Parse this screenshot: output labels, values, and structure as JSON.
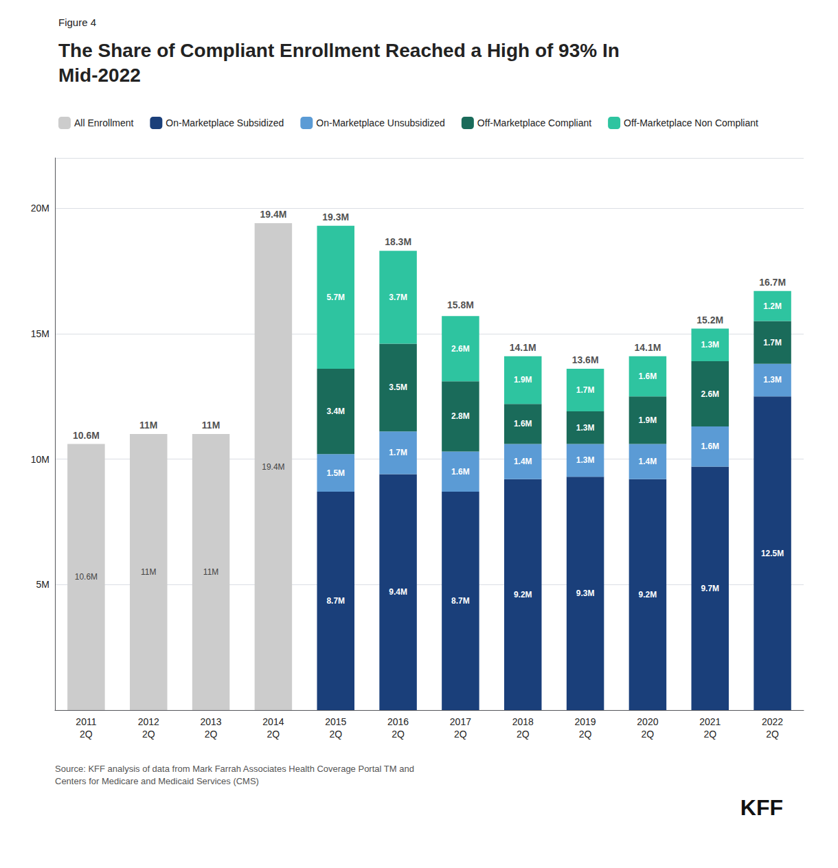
{
  "chart_data": {
    "type": "bar",
    "subtitle": "Figure 4",
    "title": "The Share of Compliant Enrollment Reached a High of 93% In\nMid-2022",
    "categories": [
      "2011\n2Q",
      "2012\n2Q",
      "2013\n2Q",
      "2014\n2Q",
      "2015\n2Q",
      "2016\n2Q",
      "2017\n2Q",
      "2018\n2Q",
      "2019\n2Q",
      "2020\n2Q",
      "2021\n2Q",
      "2022\n2Q"
    ],
    "series": [
      {
        "name": "All Enrollment",
        "color": "#cccccc",
        "values": [
          10.6,
          11.0,
          11.0,
          19.4,
          0,
          0,
          0,
          0,
          0,
          0,
          0,
          0
        ],
        "value_labels": [
          "10.6M",
          "11M",
          "11M",
          "19.4M",
          null,
          null,
          null,
          null,
          null,
          null,
          null,
          null
        ]
      },
      {
        "name": "On-Marketplace Subsidized",
        "color": "#1a3f7a",
        "values": [
          0,
          0,
          0,
          0,
          8.7,
          9.4,
          8.7,
          9.2,
          9.3,
          9.2,
          9.7,
          12.5
        ],
        "value_labels": [
          null,
          null,
          null,
          null,
          "8.7M",
          "9.4M",
          "8.7M",
          "9.2M",
          "9.3M",
          "9.2M",
          "9.7M",
          "12.5M"
        ]
      },
      {
        "name": "On-Marketplace Unsubsidized",
        "color": "#5b9bd5",
        "values": [
          0,
          0,
          0,
          0,
          1.5,
          1.7,
          1.6,
          1.4,
          1.3,
          1.4,
          1.6,
          1.3
        ],
        "value_labels": [
          null,
          null,
          null,
          null,
          "1.5M",
          "1.7M",
          "1.6M",
          "1.4M",
          "1.3M",
          "1.4M",
          "1.6M",
          "1.3M"
        ]
      },
      {
        "name": "Off-Marketplace Compliant",
        "color": "#1a6b5a",
        "values": [
          0,
          0,
          0,
          0,
          3.4,
          3.5,
          2.8,
          1.6,
          1.3,
          1.9,
          2.6,
          1.7
        ],
        "value_labels": [
          null,
          null,
          null,
          null,
          "3.4M",
          "3.5M",
          "2.8M",
          "1.6M",
          "1.3M",
          "1.9M",
          "2.6M",
          "1.7M"
        ]
      },
      {
        "name": "Off-Marketplace Non Compliant",
        "color": "#2ec4a0",
        "values": [
          0,
          0,
          0,
          0,
          5.7,
          3.7,
          2.6,
          1.9,
          1.7,
          1.6,
          1.3,
          1.2
        ],
        "value_labels": [
          null,
          null,
          null,
          null,
          "5.7M",
          "3.7M",
          "2.6M",
          "1.9M",
          "1.7M",
          "1.6M",
          "1.3M",
          "1.2M"
        ]
      }
    ],
    "totals": {
      "values": [
        10.6,
        11,
        11,
        19.4,
        19.3,
        18.3,
        15.8,
        14.1,
        13.6,
        14.1,
        15.2,
        16.7
      ],
      "value_labels": [
        "10.6M",
        "11M",
        "11M",
        "19.4M",
        "19.3M",
        "18.3M",
        "15.8M",
        "14.1M",
        "13.6M",
        "14.1M",
        "15.2M",
        "16.7M"
      ]
    },
    "annotations": [
      "Source: KFF analysis of data from Mark Farrah Associates Health Coverage Portal TM and\nCenters for Medicare and Medicaid Services (CMS)",
      "KFF"
    ],
    "ylim": [
      0,
      22
    ],
    "yticks": [
      {
        "value": 0,
        "label": null
      },
      {
        "value": 5,
        "label": "5M"
      },
      {
        "value": 10,
        "label": "10M"
      },
      {
        "value": 15,
        "label": "15M"
      },
      {
        "value": 20,
        "label": "20M"
      }
    ],
    "stacked": true,
    "data_labels": true,
    "grid": true,
    "legend": "upper left"
  }
}
